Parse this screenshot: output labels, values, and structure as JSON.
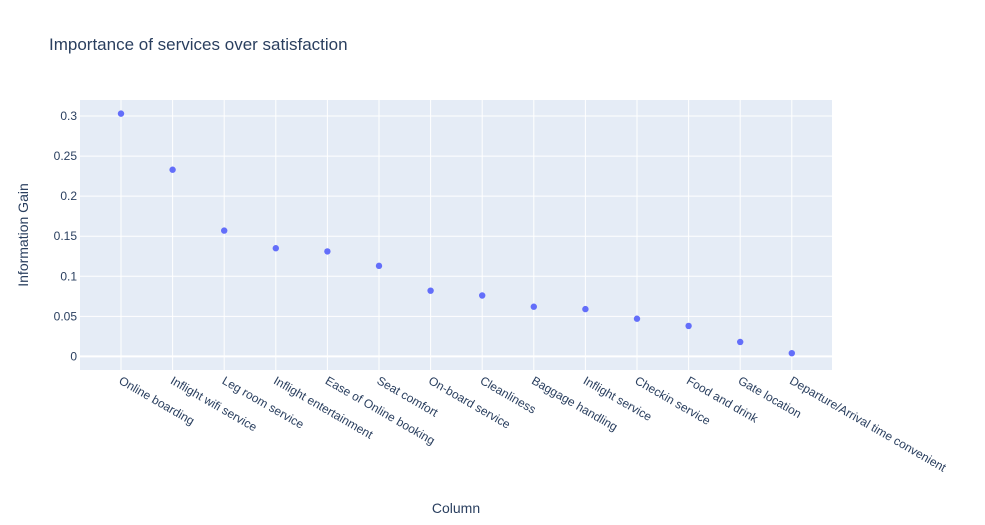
{
  "chart_data": {
    "type": "scatter",
    "title": "Importance of services over satisfaction",
    "xlabel": "Column",
    "ylabel": "Information Gain",
    "categories": [
      "Online boarding",
      "Inflight wifi service",
      "Leg room service",
      "Inflight entertainment",
      "Ease of Online booking",
      "Seat comfort",
      "On-board service",
      "Cleanliness",
      "Baggage handling",
      "Inflight service",
      "Checkin service",
      "Food and drink",
      "Gate location",
      "Departure/Arrival time convenient"
    ],
    "values": [
      0.303,
      0.233,
      0.157,
      0.135,
      0.131,
      0.113,
      0.082,
      0.076,
      0.062,
      0.059,
      0.047,
      0.038,
      0.018,
      0.004
    ],
    "ylim": [
      -0.017,
      0.32
    ],
    "yticks": [
      0,
      0.05,
      0.1,
      0.15,
      0.2,
      0.25,
      0.3
    ],
    "ytick_labels": [
      "0",
      "0.05",
      "0.1",
      "0.15",
      "0.2",
      "0.25",
      "0.3"
    ],
    "grid": true,
    "marker_color": "#636efa",
    "plot_bg": "#e5ecf6",
    "text_color": "#2a3f5f"
  }
}
